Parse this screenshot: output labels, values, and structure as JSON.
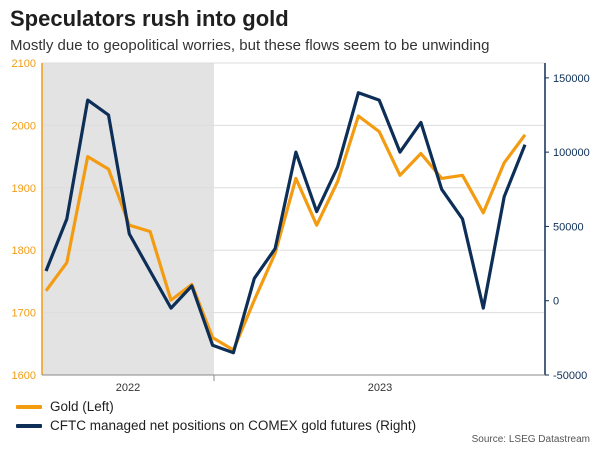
{
  "title": "Speculators rush into gold",
  "subtitle": "Mostly due to geopolitical worries, but these flows seem to be unwinding",
  "source": "Source: LSEG Datastream",
  "colors": {
    "gold": "#F39C12",
    "cftc": "#0D2F57",
    "shade": "#E3E3E3",
    "grid": "#DDDDDD"
  },
  "chart_data": {
    "type": "line",
    "title": "Speculators rush into gold",
    "left_axis": {
      "ylim": [
        1600,
        2100
      ],
      "ticks": [
        1600,
        1700,
        1800,
        1900,
        2000,
        2100
      ]
    },
    "right_axis": {
      "ylim": [
        -50000,
        160000
      ],
      "ticks": [
        -50000,
        0,
        50000,
        100000,
        150000
      ]
    },
    "x_tick_labels": [
      "2022",
      "2023"
    ],
    "shaded_region": "2022",
    "legend_position": "bottom-left",
    "x": [
      "2022-01",
      "2022-02",
      "2022-03",
      "2022-04",
      "2022-05",
      "2022-06",
      "2022-07",
      "2022-08",
      "2022-09",
      "2022-10",
      "2022-11",
      "2022-12",
      "2023-01",
      "2023-02",
      "2023-03",
      "2023-04",
      "2023-05",
      "2023-06",
      "2023-07",
      "2023-08",
      "2023-09",
      "2023-10",
      "2023-11",
      "2023-12"
    ],
    "series": [
      {
        "name": "Gold (Left)",
        "axis": "left",
        "values": [
          1735,
          1780,
          1950,
          1930,
          1840,
          1830,
          1720,
          1745,
          1660,
          1640,
          1720,
          1795,
          1915,
          1840,
          1910,
          2015,
          1990,
          1920,
          1955,
          1915,
          1920,
          1860,
          1940,
          1985
        ]
      },
      {
        "name": "CFTC managed net positions on COMEX gold futures (Right)",
        "axis": "right",
        "values": [
          20000,
          55000,
          135000,
          125000,
          45000,
          20000,
          -5000,
          10000,
          -30000,
          -35000,
          15000,
          35000,
          100000,
          60000,
          90000,
          140000,
          135000,
          100000,
          120000,
          75000,
          55000,
          -5000,
          70000,
          105000
        ]
      }
    ]
  }
}
